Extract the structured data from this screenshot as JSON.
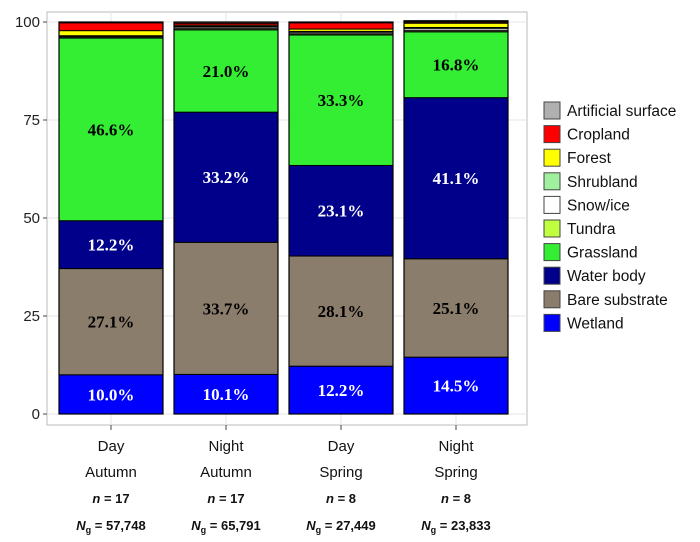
{
  "chart_data": {
    "type": "bar",
    "stacked": true,
    "ylim": [
      0,
      100
    ],
    "yticks": [
      "0",
      "25",
      "50",
      "75",
      "100"
    ],
    "grid": true,
    "legend_position": "right",
    "categories": [
      {
        "line1": "Day",
        "line2": "Autumn",
        "n_label": "n",
        "n_value": "= 17",
        "ng_label": "N",
        "ng_sub": "g",
        "ng_value": "= 57,748"
      },
      {
        "line1": "Night",
        "line2": "Autumn",
        "n_label": "n",
        "n_value": "= 17",
        "ng_label": "N",
        "ng_sub": "g",
        "ng_value": "= 65,791"
      },
      {
        "line1": "Day",
        "line2": "Spring",
        "n_label": "n",
        "n_value": "= 8",
        "ng_label": "N",
        "ng_sub": "g",
        "ng_value": "= 27,449"
      },
      {
        "line1": "Night",
        "line2": "Spring",
        "n_label": "n",
        "n_value": "= 8",
        "ng_label": "N",
        "ng_sub": "g",
        "ng_value": "= 23,833"
      }
    ],
    "series": [
      {
        "name": "Wetland",
        "color": "#0000ff",
        "label_color": "#ffffff",
        "values": [
          10.0,
          10.1,
          12.2,
          14.5
        ],
        "labels": [
          "10.0%",
          "10.1%",
          "12.2%",
          "14.5%"
        ]
      },
      {
        "name": "Bare substrate",
        "color": "#8b7d6b",
        "label_color": "#000000",
        "values": [
          27.1,
          33.7,
          28.1,
          25.1
        ],
        "labels": [
          "27.1%",
          "33.7%",
          "28.1%",
          "25.1%"
        ]
      },
      {
        "name": "Water body",
        "color": "#00008b",
        "label_color": "#ffffff",
        "values": [
          12.2,
          33.2,
          23.1,
          41.1
        ],
        "labels": [
          "12.2%",
          "33.2%",
          "23.1%",
          "41.1%"
        ]
      },
      {
        "name": "Grassland",
        "color": "#33ee33",
        "label_color": "#000000",
        "values": [
          46.6,
          21.0,
          33.3,
          16.8
        ],
        "labels": [
          "46.6%",
          "21.0%",
          "33.3%",
          "16.8%"
        ]
      },
      {
        "name": "Tundra",
        "color": "#bfff3f",
        "label_color": "#000000",
        "values": [
          0.3,
          0.3,
          0.3,
          0.3
        ],
        "labels": [
          "",
          "",
          "",
          ""
        ]
      },
      {
        "name": "Snow/ice",
        "color": "#ffffff",
        "label_color": "#000000",
        "values": [
          0.2,
          0.4,
          0.4,
          0.5
        ],
        "labels": [
          "",
          "",
          "",
          ""
        ]
      },
      {
        "name": "Shrubland",
        "color": "#a0f0a0",
        "label_color": "#000000",
        "values": [
          0.1,
          0.2,
          0.2,
          0.3
        ],
        "labels": [
          "",
          "",
          "",
          ""
        ]
      },
      {
        "name": "Forest",
        "color": "#ffff00",
        "label_color": "#000000",
        "values": [
          1.3,
          0.3,
          0.6,
          1.1
        ],
        "labels": [
          "",
          "",
          "",
          ""
        ]
      },
      {
        "name": "Cropland",
        "color": "#ff0000",
        "label_color": "#000000",
        "values": [
          2.0,
          0.5,
          1.6,
          0.3
        ],
        "labels": [
          "",
          "",
          "",
          ""
        ]
      },
      {
        "name": "Artificial surface",
        "color": "#b0b0b0",
        "label_color": "#000000",
        "values": [
          0.2,
          0.3,
          0.2,
          0.3
        ],
        "labels": [
          "",
          "",
          "",
          ""
        ]
      }
    ],
    "legend_order": [
      "Artificial surface",
      "Cropland",
      "Forest",
      "Shrubland",
      "Snow/ice",
      "Tundra",
      "Grassland",
      "Water body",
      "Bare substrate",
      "Wetland"
    ]
  }
}
